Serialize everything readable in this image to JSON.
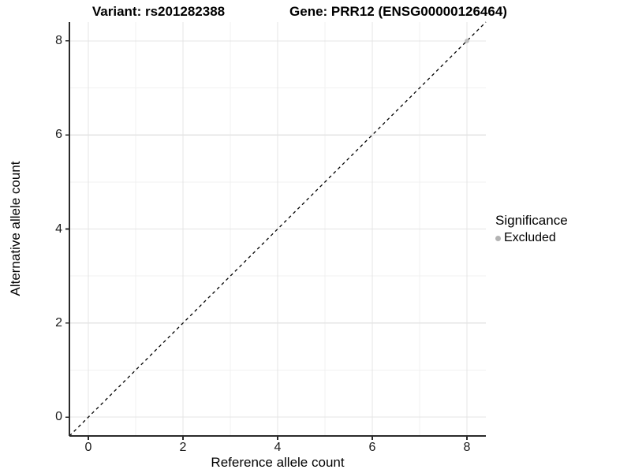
{
  "chart_data": {
    "type": "scatter",
    "title_left": "Variant: rs201282388",
    "title_right": "Gene: PRR12 (ENSG00000126464)",
    "xlabel": "Reference allele count",
    "ylabel": "Alternative allele count",
    "xlim": [
      -0.4,
      8.4
    ],
    "ylim": [
      -0.4,
      8.4
    ],
    "x_ticks": [
      0,
      2,
      4,
      6,
      8
    ],
    "y_ticks": [
      0,
      2,
      4,
      6,
      8
    ],
    "x_minor_ticks": [
      1,
      3,
      5,
      7
    ],
    "y_minor_ticks": [
      1,
      3,
      5,
      7
    ],
    "grid": "major+minor",
    "series": [
      {
        "name": "Excluded",
        "color": "#bdbdbd",
        "points": [
          {
            "x": 8,
            "y": 8
          }
        ]
      }
    ],
    "reference_line": {
      "type": "identity",
      "style": "dashed",
      "color": "#000000"
    },
    "legend": {
      "title": "Significance",
      "position": "right",
      "entries": [
        {
          "label": "Excluded",
          "color": "#b3b3b3"
        }
      ]
    },
    "colors": {
      "axis_line": "#2a2a2a",
      "tick_mark": "#2a2a2a",
      "grid_major": "#e4e4e4",
      "grid_minor": "#f1f1f1",
      "background": "#ffffff"
    }
  }
}
